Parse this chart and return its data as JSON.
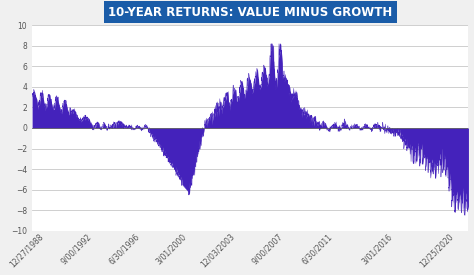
{
  "title": "10-YEAR RETURNS: VALUE MINUS GROWTH",
  "title_bg_color": "#1a5ca8",
  "title_text_color": "#ffffff",
  "fill_color": "#4422bb",
  "bg_color": "#f0f0f0",
  "plot_bg_color": "#ffffff",
  "grid_color": "#c8c8c8",
  "axis_color": "#555555",
  "ylim": [
    -10,
    10
  ],
  "yticks": [
    -10,
    -8,
    -6,
    -4,
    -2,
    0,
    2,
    4,
    6,
    8,
    10
  ],
  "x_labels": [
    "12/27/1988",
    "9/00/1992",
    "6/30/1996",
    "3/01/2000",
    "12/03/2003",
    "9/00/2007",
    "6/30/2011",
    "3/01/2016",
    "12/25/2020"
  ],
  "x_label_rotation": 45,
  "tick_fontsize": 5.5
}
